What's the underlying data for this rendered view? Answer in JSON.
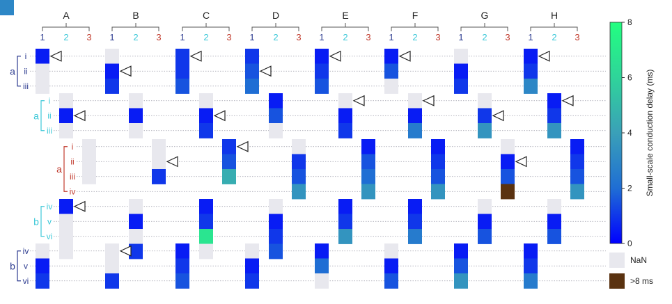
{
  "chart_data": {
    "type": "heatmap",
    "columns": [
      "A",
      "B",
      "C",
      "D",
      "E",
      "F",
      "G",
      "H"
    ],
    "subcolumns": [
      "1",
      "2",
      "3"
    ],
    "subcolumn_colors": [
      "#2b3a8f",
      "#3cc8d8",
      "#c0392b"
    ],
    "row_groups": [
      {
        "label": "a",
        "color": "#2b3a8f",
        "rows": [
          "i",
          "ii",
          "iii"
        ],
        "sub": 0
      },
      {
        "label": "a",
        "color": "#3cc8d8",
        "rows": [
          "i",
          "ii",
          "iii"
        ],
        "sub": 1
      },
      {
        "label": "a",
        "color": "#c0392b",
        "rows": [
          "i",
          "ii",
          "iii",
          "iv"
        ],
        "sub": 2
      },
      {
        "label": "b",
        "color": "#3cc8d8",
        "rows": [
          "iv",
          "v",
          "vi"
        ],
        "sub": 1
      },
      {
        "label": "b",
        "color": "#2b3a8f",
        "rows": [
          "iv",
          "v",
          "vi"
        ],
        "sub": 0
      }
    ],
    "values": [
      [
        [
          0.5,
          null,
          null
        ],
        [
          null,
          0.5,
          null
        ],
        [
          null,
          null,
          null
        ],
        [
          0.5,
          null,
          null,
          null
        ],
        [
          null,
          0.5,
          1.0
        ],
        [
          null,
          0.5,
          null
        ]
      ],
      [
        [
          null,
          0.5,
          1.0
        ],
        [
          null,
          0.5,
          null
        ],
        [
          null,
          null,
          1.0
        ],
        [
          null,
          0.5,
          null,
          1.0
        ],
        [
          null,
          null,
          1.0
        ],
        [
          null,
          0.5,
          null
        ]
      ],
      [
        [
          1.0,
          1.0,
          1.5
        ],
        [
          null,
          0.5,
          1.0
        ],
        [
          1.0,
          1.5,
          4.5
        ],
        [
          0.5,
          1.0,
          6.8,
          null
        ],
        [
          0.5,
          1.0,
          1.5
        ],
        [
          null,
          0.5,
          null
        ]
      ],
      [
        [
          1.0,
          1.5,
          2.0
        ],
        [
          0.5,
          1.5,
          null
        ],
        [
          null,
          1.0,
          1.5,
          3.5
        ],
        [
          null,
          0.5,
          1.0,
          1.5
        ],
        [
          null,
          0.5,
          1.0
        ],
        [
          null,
          0.5,
          3.0
        ]
      ],
      [
        [
          0.5,
          1.0,
          1.5
        ],
        [
          null,
          0.5,
          1.0
        ],
        [
          0.5,
          1.5,
          2.0,
          3.5
        ],
        [
          0.5,
          1.0,
          3.5
        ],
        [
          0.5,
          2.0,
          null
        ]
      ],
      [
        [
          0.5,
          1.5,
          null
        ],
        [
          null,
          0.5,
          2.5
        ],
        [
          0.5,
          1.0,
          1.5,
          3.5
        ],
        [
          0.5,
          1.0,
          2.5
        ],
        [
          null,
          0.5,
          1.5
        ]
      ],
      [
        [
          null,
          0.5,
          1.0
        ],
        [
          null,
          1.0,
          3.5
        ],
        [
          null,
          0.5,
          1.5,
          9.5
        ],
        [
          null,
          0.5,
          1.5
        ],
        [
          0.5,
          1.5,
          3.5
        ]
      ],
      [
        [
          0.5,
          1.0,
          3.0
        ],
        [
          0.5,
          1.0,
          3.5
        ],
        [
          0.5,
          1.0,
          1.5,
          3.5
        ],
        [
          null,
          0.5,
          1.5
        ],
        [
          0.5,
          1.0,
          2.5
        ]
      ]
    ],
    "markers": [
      [
        0,
        1,
        null,
        0,
        null,
        1
      ],
      [
        1,
        null,
        1,
        null,
        0,
        null
      ],
      [
        0,
        1,
        0,
        null,
        null,
        null
      ],
      [
        1,
        null,
        null,
        null,
        null,
        null
      ],
      [
        0,
        0,
        null,
        null,
        null,
        null
      ],
      [
        0,
        0,
        null,
        null,
        null,
        null
      ],
      [
        null,
        1,
        1,
        null,
        null,
        null
      ],
      [
        0,
        0,
        null,
        null,
        null,
        null
      ]
    ],
    "colorbar": {
      "title": "Small-scale conduction delay (ms)",
      "min": 0,
      "max": 8,
      "ticks": [
        0,
        2,
        4,
        6,
        8
      ],
      "stops": [
        "#0000ff",
        "#1f6ed4",
        "#3aa0b8",
        "#2fd49a",
        "#22ff80"
      ]
    },
    "legend": [
      {
        "label": "NaN",
        "color": "#e8e8ee"
      },
      {
        "label": ">8 ms",
        "color": "#5a3210"
      }
    ]
  }
}
